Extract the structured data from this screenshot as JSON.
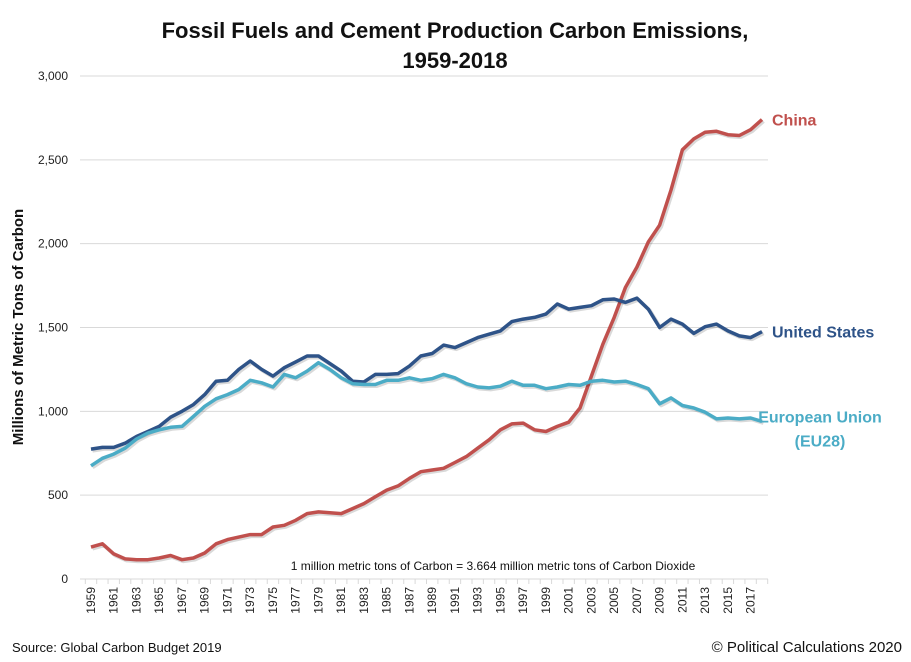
{
  "chart_data": {
    "type": "line",
    "title": "Fossil Fuels and Cement Production Carbon Emissions,",
    "title_line2": "1959-2018",
    "ylabel": "Millions of Metric Tons of Carbon",
    "xlabel": "",
    "ylim": [
      0,
      3000
    ],
    "yticks": [
      0,
      500,
      1000,
      1500,
      2000,
      2500,
      3000
    ],
    "ytick_labels": [
      "0",
      "500",
      "1,000",
      "1,500",
      "2,000",
      "2,500",
      "3,000"
    ],
    "xlim": [
      1959,
      2018
    ],
    "xtick_labels": [
      "1959",
      "1961",
      "1963",
      "1965",
      "1967",
      "1969",
      "1971",
      "1973",
      "1975",
      "1977",
      "1979",
      "1981",
      "1983",
      "1985",
      "1987",
      "1989",
      "1991",
      "1993",
      "1995",
      "1997",
      "1999",
      "2001",
      "2003",
      "2005",
      "2007",
      "2009",
      "2011",
      "2013",
      "2015",
      "2017"
    ],
    "grid": "horizontal",
    "legend": "direct labels at right",
    "annotation": "1 million metric tons of Carbon = 3.664 million metric tons of Carbon Dioxide",
    "series": [
      {
        "name": "China",
        "label_lines": [
          "China"
        ],
        "color": "#C0504D",
        "values": [
          190,
          210,
          150,
          120,
          115,
          115,
          125,
          140,
          115,
          125,
          155,
          210,
          235,
          250,
          265,
          265,
          310,
          320,
          350,
          390,
          400,
          395,
          390,
          420,
          450,
          490,
          530,
          555,
          600,
          640,
          650,
          660,
          695,
          730,
          780,
          830,
          890,
          925,
          930,
          890,
          880,
          910,
          935,
          1020,
          1210,
          1400,
          1560,
          1740,
          1860,
          2010,
          2110,
          2320,
          2560,
          2625,
          2665,
          2670,
          2650,
          2645,
          2680,
          2740
        ]
      },
      {
        "name": "United States",
        "label_lines": [
          "United States"
        ],
        "color": "#2E5388",
        "values": [
          775,
          785,
          785,
          810,
          850,
          880,
          910,
          965,
          1000,
          1040,
          1100,
          1180,
          1185,
          1250,
          1300,
          1250,
          1210,
          1260,
          1295,
          1330,
          1330,
          1285,
          1240,
          1180,
          1175,
          1220,
          1220,
          1225,
          1270,
          1330,
          1345,
          1395,
          1380,
          1410,
          1440,
          1460,
          1480,
          1535,
          1550,
          1560,
          1580,
          1640,
          1610,
          1620,
          1630,
          1665,
          1670,
          1650,
          1675,
          1610,
          1500,
          1550,
          1520,
          1465,
          1505,
          1520,
          1480,
          1450,
          1440,
          1475
        ]
      },
      {
        "name": "European Union (EU28)",
        "label_lines": [
          "European Union",
          "(EU28)"
        ],
        "color": "#4BACC6",
        "values": [
          675,
          720,
          745,
          780,
          835,
          870,
          890,
          905,
          910,
          970,
          1030,
          1075,
          1100,
          1130,
          1185,
          1170,
          1145,
          1220,
          1200,
          1240,
          1290,
          1250,
          1200,
          1165,
          1160,
          1160,
          1185,
          1185,
          1200,
          1185,
          1195,
          1220,
          1200,
          1165,
          1145,
          1140,
          1150,
          1180,
          1155,
          1155,
          1135,
          1145,
          1160,
          1155,
          1180,
          1185,
          1175,
          1180,
          1160,
          1135,
          1045,
          1080,
          1035,
          1020,
          995,
          955,
          960,
          955,
          960,
          940
        ]
      }
    ]
  },
  "footer": {
    "source": "Source: Global Carbon Budget 2019",
    "copyright": "© Political Calculations 2020"
  }
}
